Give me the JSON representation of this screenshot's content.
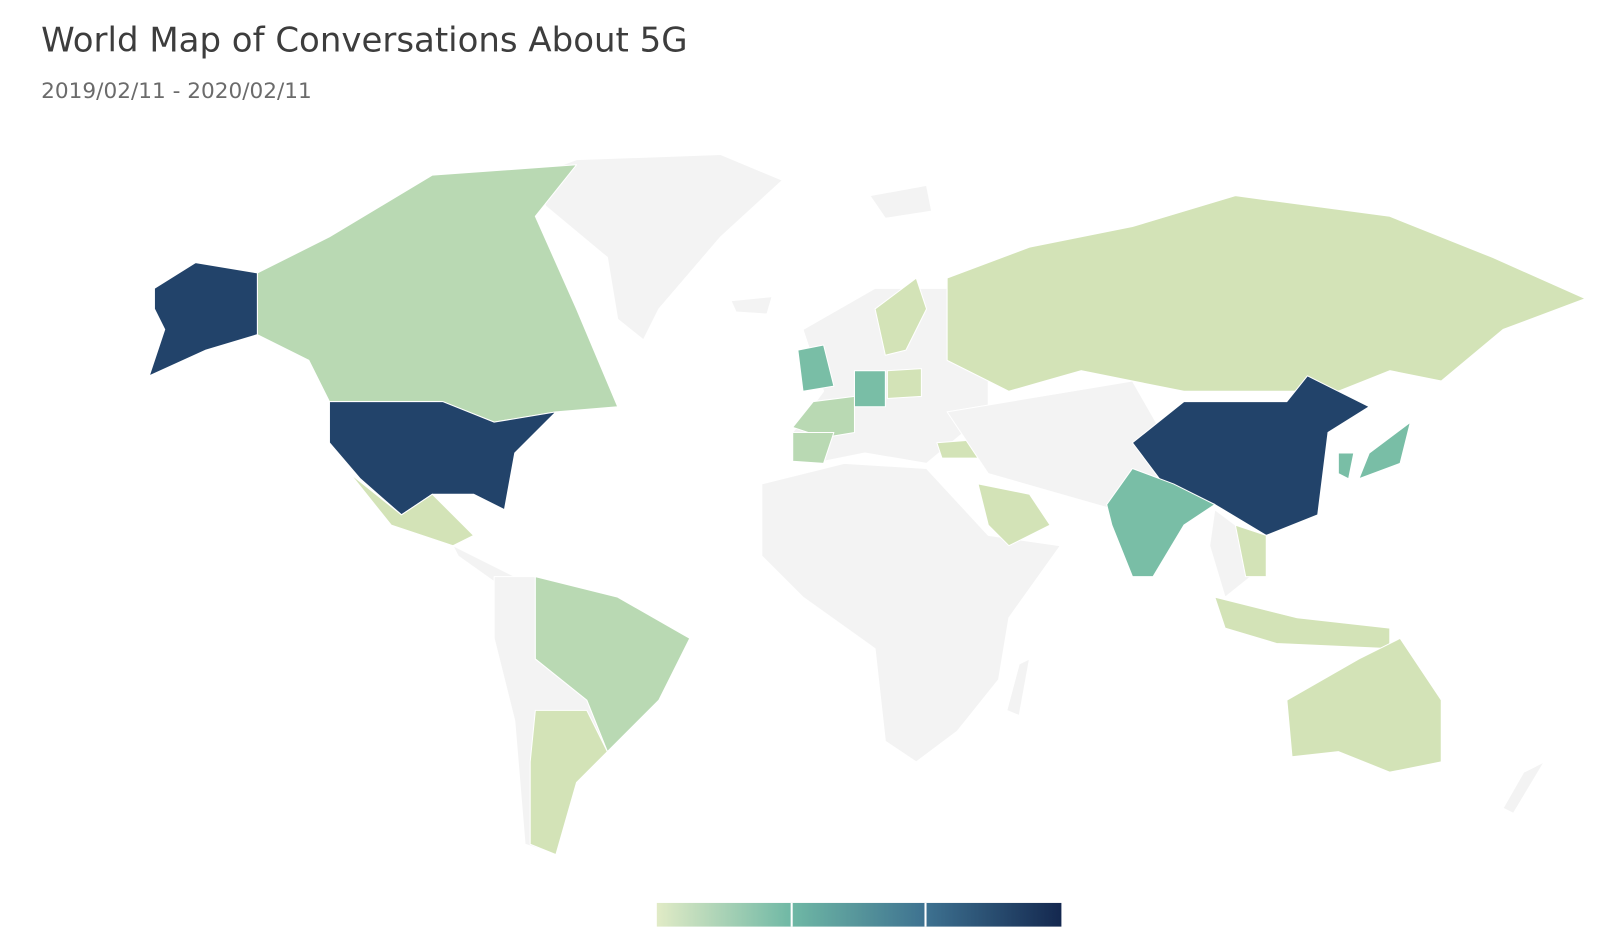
{
  "header": {
    "title": "World Map of Conversations About 5G",
    "subtitle": "2019/02/11 - 2020/02/11"
  },
  "legend": {
    "colors": [
      "#e1ebc6",
      "#6fb8a5",
      "#3d7190",
      "#14284f"
    ]
  }
}
